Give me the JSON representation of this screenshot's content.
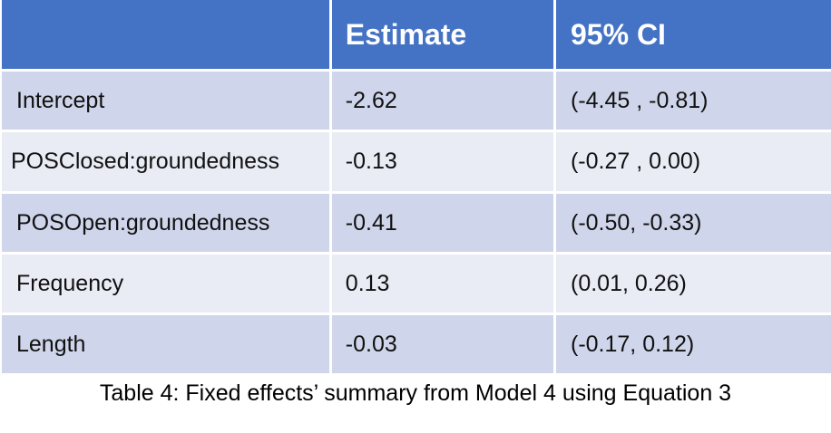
{
  "table": {
    "headers": [
      "",
      "Estimate",
      "95% CI"
    ],
    "rows": [
      {
        "term": "Intercept",
        "estimate": "-2.62",
        "ci": "(-4.45 , -0.81)"
      },
      {
        "term": "POSClosed:groundedness",
        "estimate": "-0.13",
        "ci": "(-0.27 , 0.00)"
      },
      {
        "term": "POSOpen:groundedness",
        "estimate": "-0.41",
        "ci": "(-0.50, -0.33)"
      },
      {
        "term": "Frequency",
        "estimate": "0.13",
        "ci": "(0.01, 0.26)"
      },
      {
        "term": "Length",
        "estimate": "-0.03",
        "ci": "(-0.17, 0.12)"
      }
    ]
  },
  "caption": "Table 4: Fixed effects’ summary from Model 4 using Equation 3"
}
